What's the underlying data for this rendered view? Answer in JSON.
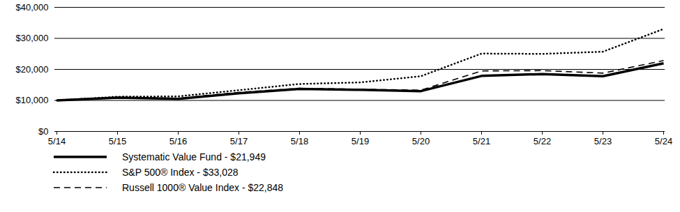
{
  "chart_data": {
    "type": "line",
    "x": [
      "5/14",
      "5/15",
      "5/16",
      "5/17",
      "5/18",
      "5/19",
      "5/20",
      "5/21",
      "5/22",
      "5/23",
      "5/24"
    ],
    "series": [
      {
        "name": "Systematic Value Fund - $21,949",
        "color": "#000000",
        "line_style": "solid",
        "values": [
          10000,
          10900,
          10500,
          12300,
          13700,
          13400,
          13000,
          17900,
          18500,
          17800,
          21949
        ]
      },
      {
        "name": "S&P 500® Index - $33,028",
        "color": "#000000",
        "line_style": "dotted",
        "values": [
          10000,
          11200,
          11300,
          13300,
          15300,
          15800,
          17800,
          25100,
          25000,
          25700,
          33028
        ]
      },
      {
        "name": "Russell 1000® Value Index - $22,848",
        "color": "#000000",
        "line_style": "dashed",
        "values": [
          10000,
          11000,
          10700,
          12600,
          13900,
          13600,
          13300,
          19500,
          19600,
          18800,
          22848
        ]
      }
    ],
    "ylim": [
      0,
      40000
    ],
    "yticks": [
      {
        "value": 0,
        "label": "$0"
      },
      {
        "value": 10000,
        "label": "$10,000"
      },
      {
        "value": 20000,
        "label": "$20,000"
      },
      {
        "value": 30000,
        "label": "$30,000"
      },
      {
        "value": 40000,
        "label": "$40,000"
      }
    ],
    "grid": true,
    "legend": "bottom"
  }
}
